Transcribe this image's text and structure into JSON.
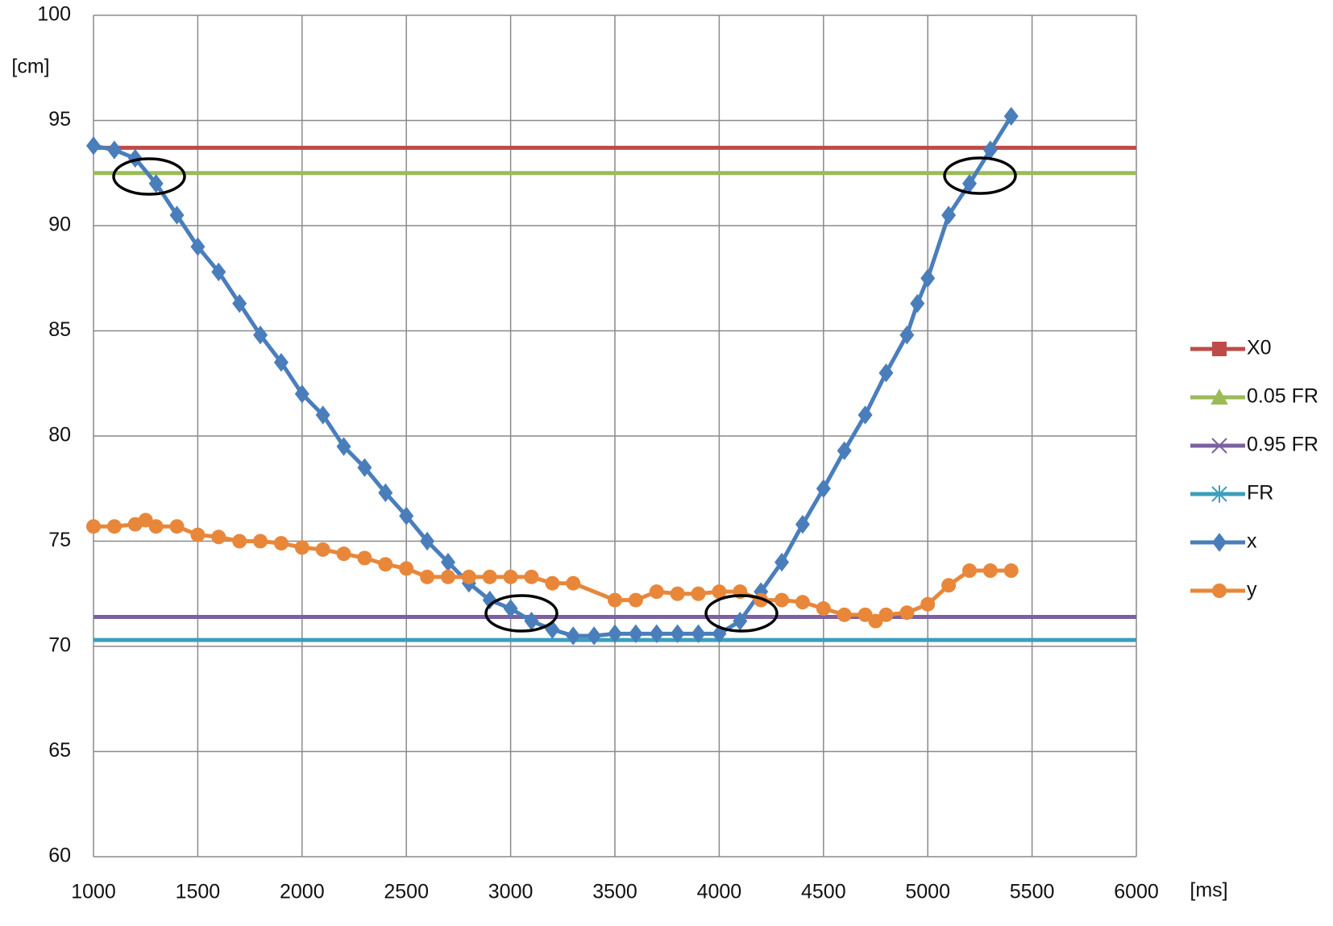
{
  "chart_data": {
    "type": "line",
    "x_label": "[ms]",
    "y_label": "[cm]",
    "xlim": [
      1000,
      6000
    ],
    "xticks": [
      1000,
      1500,
      2000,
      2500,
      3000,
      3500,
      4000,
      4500,
      5000,
      5500,
      6000
    ],
    "ylim": [
      60,
      100
    ],
    "yticks": [
      60,
      65,
      70,
      75,
      80,
      85,
      90,
      95,
      100
    ],
    "grid": true,
    "legend": "right",
    "series": [
      {
        "name": "X0",
        "color": "#be4b48",
        "marker": "square",
        "plot_markers": false,
        "x": [
          1000,
          6000
        ],
        "values": [
          93.7,
          93.7
        ]
      },
      {
        "name": "0.05 FR",
        "color": "#9bbb59",
        "marker": "triangle",
        "plot_markers": false,
        "x": [
          1000,
          6000
        ],
        "values": [
          92.5,
          92.5
        ]
      },
      {
        "name": "0.95 FR",
        "color": "#7d60a0",
        "marker": "cross",
        "plot_markers": false,
        "x": [
          1000,
          6000
        ],
        "values": [
          71.4,
          71.4
        ]
      },
      {
        "name": "FR",
        "color": "#3a9fbd",
        "marker": "star",
        "plot_markers": false,
        "x": [
          1000,
          6000
        ],
        "values": [
          70.3,
          70.3
        ]
      },
      {
        "name": "x",
        "color": "#4a7ebb",
        "marker": "diamond",
        "plot_markers": true,
        "x": [
          1000,
          1100,
          1200,
          1300,
          1400,
          1500,
          1600,
          1700,
          1800,
          1900,
          2000,
          2100,
          2200,
          2300,
          2400,
          2500,
          2600,
          2700,
          2800,
          2900,
          3000,
          3100,
          3200,
          3300,
          3400,
          3500,
          3600,
          3700,
          3800,
          3900,
          4000,
          4100,
          4200,
          4300,
          4400,
          4500,
          4600,
          4700,
          4800,
          4900,
          4950,
          5000,
          5100,
          5200,
          5300,
          5400
        ],
        "values": [
          93.8,
          93.6,
          93.2,
          92.0,
          90.5,
          89.0,
          87.8,
          86.3,
          84.8,
          83.5,
          82.0,
          81.0,
          79.5,
          78.5,
          77.3,
          76.2,
          75.0,
          74.0,
          73.0,
          72.2,
          71.8,
          71.2,
          70.8,
          70.5,
          70.5,
          70.6,
          70.6,
          70.6,
          70.6,
          70.6,
          70.6,
          71.2,
          72.6,
          74.0,
          75.8,
          77.5,
          79.3,
          81.0,
          83.0,
          84.8,
          86.3,
          87.5,
          90.5,
          92.0,
          93.6,
          95.2
        ]
      },
      {
        "name": "y",
        "color": "#e8873a",
        "marker": "circle",
        "plot_markers": true,
        "x": [
          1000,
          1100,
          1200,
          1250,
          1300,
          1400,
          1500,
          1600,
          1700,
          1800,
          1900,
          2000,
          2100,
          2200,
          2300,
          2400,
          2500,
          2600,
          2700,
          2800,
          2900,
          3000,
          3100,
          3200,
          3300,
          3500,
          3600,
          3700,
          3800,
          3900,
          4000,
          4100,
          4200,
          4300,
          4400,
          4500,
          4600,
          4700,
          4750,
          4800,
          4900,
          5000,
          5100,
          5200,
          5300,
          5400
        ],
        "values": [
          75.7,
          75.7,
          75.8,
          76.0,
          75.7,
          75.7,
          75.3,
          75.2,
          75.0,
          75.0,
          74.9,
          74.7,
          74.6,
          74.4,
          74.2,
          73.9,
          73.7,
          73.3,
          73.3,
          73.3,
          73.3,
          73.3,
          73.3,
          73.0,
          73.0,
          72.2,
          72.2,
          72.6,
          72.5,
          72.5,
          72.6,
          72.6,
          72.2,
          72.2,
          72.1,
          71.8,
          71.5,
          71.5,
          71.2,
          71.5,
          71.6,
          72.0,
          72.9,
          73.6,
          73.6,
          73.6
        ]
      }
    ]
  }
}
